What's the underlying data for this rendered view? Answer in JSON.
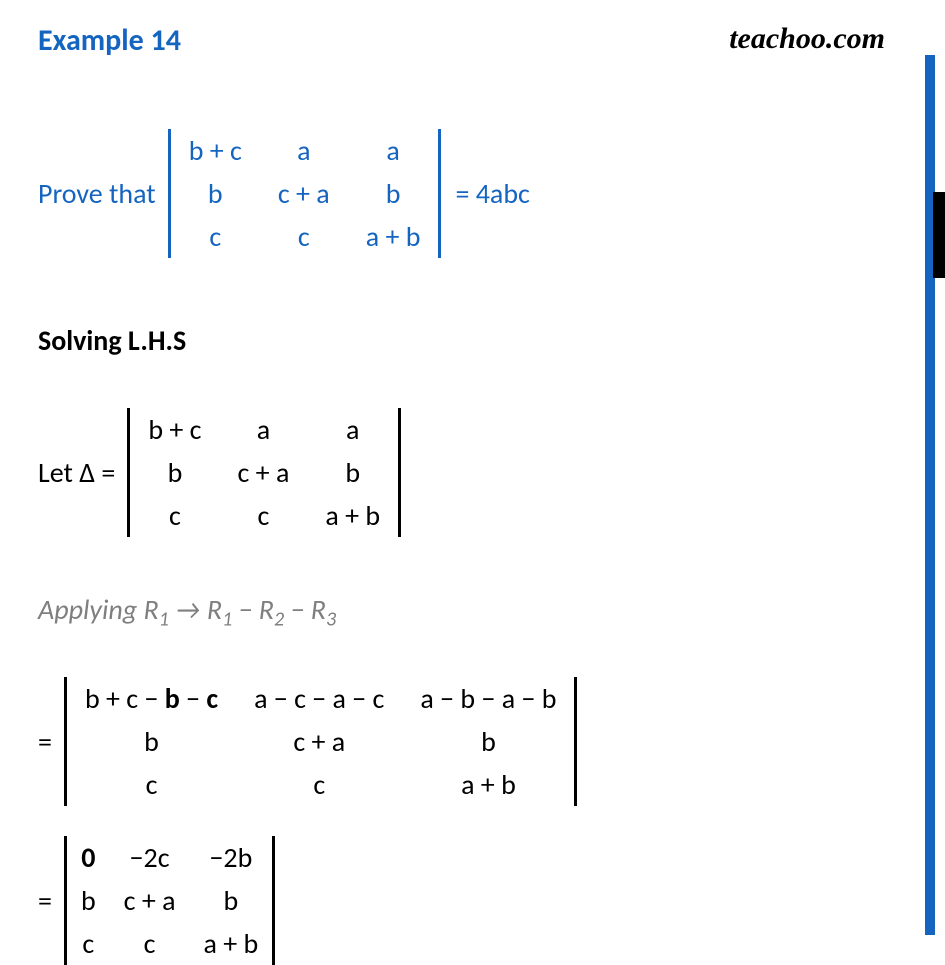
{
  "header": {
    "title": "Example 14",
    "brand": "teachoo.com"
  },
  "problem": {
    "prove_label": "Prove that",
    "det1": {
      "r1c1": "b + c",
      "r1c2": "a",
      "r1c3": "a",
      "r2c1": "b",
      "r2c2": "c + a",
      "r2c3": "b",
      "r3c1": "c",
      "r3c2": "c",
      "r3c3": "a + b"
    },
    "rhs": "= 4abc"
  },
  "solving_label": "Solving L.H.S",
  "let": {
    "label": "Let Δ =",
    "det": {
      "r1c1": "b + c",
      "r1c2": "a",
      "r1c3": "a",
      "r2c1": "b",
      "r2c2": "c + a",
      "r2c3": "b",
      "r3c1": "c",
      "r3c2": "c",
      "r3c3": "a + b"
    }
  },
  "applying": {
    "prefix": "Applying R",
    "s1": "1",
    "arrow": " → R",
    "s2": "1",
    "minus1": " − R",
    "s3": "2",
    "minus2": " − R",
    "s4": "3"
  },
  "step1": {
    "eq": "=",
    "det": {
      "r1c1_a": "b + c − ",
      "r1c1_b": "b",
      "r1c1_c": " − ",
      "r1c1_d": "c",
      "r1c2": "a − c − a − c",
      "r1c3": "a − b − a − b",
      "r2c1": "b",
      "r2c2": "c + a",
      "r2c3": "b",
      "r3c1": "c",
      "r3c2": "c",
      "r3c3": "a + b"
    }
  },
  "step2": {
    "eq": "=",
    "det": {
      "r1c1": "0",
      "r1c2": "−2c",
      "r1c3": "−2b",
      "r2c1": "b",
      "r2c2": "c + a",
      "r2c3": "b",
      "r3c1": "c",
      "r3c2": "c",
      "r3c3": "a + b"
    }
  },
  "colors": {
    "accent": "#1565c0",
    "text": "#000000",
    "gray": "#7f7f7f"
  }
}
